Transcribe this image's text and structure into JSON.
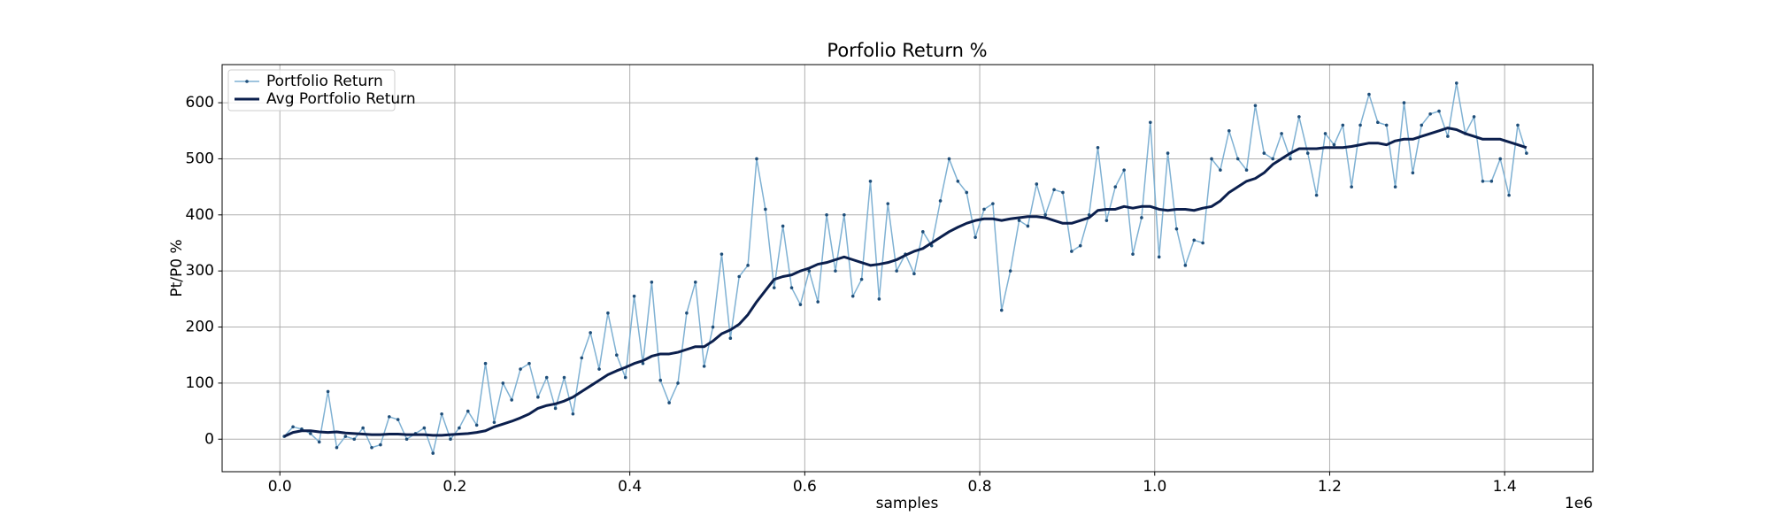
{
  "chart_data": {
    "type": "line",
    "title": "Porfolio Return %",
    "xlabel": "samples",
    "ylabel": "Pt/P0 %",
    "x_offset": "1e6",
    "grid": true,
    "legend": "upper left",
    "x": [
      5000,
      15000,
      25000,
      35000,
      45000,
      55000,
      65000,
      75000,
      85000,
      95000,
      105000,
      115000,
      125000,
      135000,
      145000,
      155000,
      165000,
      175000,
      185000,
      195000,
      205000,
      215000,
      225000,
      235000,
      245000,
      255000,
      265000,
      275000,
      285000,
      295000,
      305000,
      315000,
      325000,
      335000,
      345000,
      355000,
      365000,
      375000,
      385000,
      395000,
      405000,
      415000,
      425000,
      435000,
      445000,
      455000,
      465000,
      475000,
      485000,
      495000,
      505000,
      515000,
      525000,
      535000,
      545000,
      555000,
      565000,
      575000,
      585000,
      595000,
      605000,
      615000,
      625000,
      635000,
      645000,
      655000,
      665000,
      675000,
      685000,
      695000,
      705000,
      715000,
      725000,
      735000,
      745000,
      755000,
      765000,
      775000,
      785000,
      795000,
      805000,
      815000,
      825000,
      835000,
      845000,
      855000,
      865000,
      875000,
      885000,
      895000,
      905000,
      915000,
      925000,
      935000,
      945000,
      955000,
      965000,
      975000,
      985000,
      995000,
      1005000,
      1015000,
      1025000,
      1035000,
      1045000,
      1055000,
      1065000,
      1075000,
      1085000,
      1095000,
      1105000,
      1115000,
      1125000,
      1135000,
      1145000,
      1155000,
      1165000,
      1175000,
      1185000,
      1195000,
      1205000,
      1215000,
      1225000,
      1235000,
      1245000,
      1255000,
      1265000,
      1275000,
      1285000,
      1295000,
      1305000,
      1315000,
      1325000,
      1335000,
      1345000,
      1355000,
      1365000,
      1375000,
      1385000,
      1395000,
      1405000,
      1415000,
      1425000
    ],
    "series": [
      {
        "name": "Portfolio Return",
        "color": "#7fb1d3",
        "marker_color": "#1f4e79",
        "values": [
          5,
          22,
          18,
          10,
          -5,
          85,
          -15,
          5,
          0,
          20,
          -15,
          -10,
          40,
          35,
          0,
          10,
          20,
          -25,
          45,
          0,
          20,
          50,
          25,
          135,
          30,
          100,
          70,
          125,
          135,
          75,
          110,
          55,
          110,
          45,
          145,
          190,
          125,
          225,
          150,
          110,
          255,
          135,
          280,
          105,
          65,
          100,
          225,
          280,
          130,
          200,
          330,
          180,
          290,
          310,
          500,
          410,
          270,
          380,
          270,
          240,
          300,
          245,
          400,
          300,
          400,
          255,
          285,
          460,
          250,
          420,
          300,
          330,
          295,
          370,
          345,
          425,
          500,
          460,
          440,
          360,
          410,
          420,
          230,
          300,
          390,
          380,
          455,
          400,
          445,
          440,
          335,
          345,
          400,
          520,
          390,
          450,
          480,
          330,
          395,
          565,
          325,
          510,
          375,
          310,
          355,
          350,
          500,
          480,
          550,
          500,
          480,
          595,
          510,
          500,
          545,
          500,
          575,
          510,
          435,
          545,
          525,
          560,
          450,
          560,
          615,
          565,
          560,
          450,
          600,
          475,
          560,
          580,
          585,
          540,
          635,
          545,
          575,
          460,
          460,
          500,
          435,
          560,
          510
        ]
      },
      {
        "name": "Avg Portfolio Return",
        "color": "#0b1f4d",
        "values": [
          5,
          12,
          15,
          15,
          13,
          12,
          13,
          11,
          10,
          9,
          8,
          8,
          9,
          9,
          8,
          8,
          8,
          7,
          7,
          8,
          9,
          10,
          12,
          15,
          22,
          27,
          32,
          38,
          45,
          55,
          60,
          63,
          68,
          75,
          85,
          95,
          105,
          115,
          122,
          128,
          135,
          140,
          148,
          152,
          152,
          155,
          160,
          165,
          165,
          175,
          188,
          195,
          205,
          222,
          245,
          265,
          285,
          290,
          293,
          300,
          305,
          312,
          315,
          320,
          325,
          320,
          315,
          310,
          312,
          315,
          320,
          328,
          335,
          340,
          350,
          360,
          370,
          378,
          385,
          390,
          393,
          393,
          390,
          393,
          395,
          397,
          397,
          395,
          390,
          385,
          385,
          390,
          395,
          408,
          410,
          410,
          415,
          412,
          415,
          415,
          410,
          408,
          410,
          410,
          408,
          412,
          415,
          425,
          440,
          450,
          460,
          465,
          475,
          490,
          500,
          510,
          518,
          518,
          518,
          520,
          520,
          520,
          522,
          525,
          528,
          528,
          525,
          532,
          535,
          535,
          540,
          545,
          550,
          555,
          552,
          545,
          540,
          535,
          535,
          535,
          530,
          525,
          520
        ]
      }
    ],
    "xlim": [
      -66000,
      1501000
    ],
    "xticks": [
      {
        "value": 0,
        "label": "0.0"
      },
      {
        "value": 200000,
        "label": "0.2"
      },
      {
        "value": 400000,
        "label": "0.4"
      },
      {
        "value": 600000,
        "label": "0.6"
      },
      {
        "value": 800000,
        "label": "0.8"
      },
      {
        "value": 1000000,
        "label": "1.0"
      },
      {
        "value": 1200000,
        "label": "1.2"
      },
      {
        "value": 1400000,
        "label": "1.4"
      }
    ],
    "ylim": [
      -58,
      668
    ],
    "yticks": [
      0,
      100,
      200,
      300,
      400,
      500,
      600
    ]
  }
}
